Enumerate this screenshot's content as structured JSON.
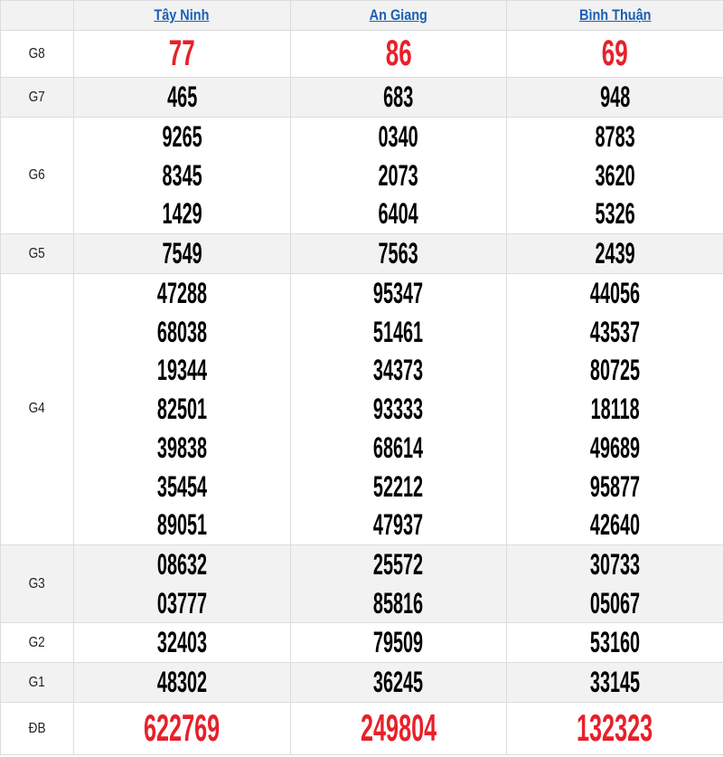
{
  "provinces": [
    "Tây Ninh",
    "An Giang",
    "Bình Thuận"
  ],
  "accent_red": "#e8202a",
  "link_blue": "#1a5fb4",
  "rows": [
    {
      "label": "G8",
      "values": [
        [
          "77"
        ],
        [
          "86"
        ],
        [
          "69"
        ]
      ]
    },
    {
      "label": "G7",
      "values": [
        [
          "465"
        ],
        [
          "683"
        ],
        [
          "948"
        ]
      ]
    },
    {
      "label": "G6",
      "values": [
        [
          "9265",
          "8345",
          "1429"
        ],
        [
          "0340",
          "2073",
          "6404"
        ],
        [
          "8783",
          "3620",
          "5326"
        ]
      ]
    },
    {
      "label": "G5",
      "values": [
        [
          "7549"
        ],
        [
          "7563"
        ],
        [
          "2439"
        ]
      ]
    },
    {
      "label": "G4",
      "values": [
        [
          "47288",
          "68038",
          "19344",
          "82501",
          "39838",
          "35454",
          "89051"
        ],
        [
          "95347",
          "51461",
          "34373",
          "93333",
          "68614",
          "52212",
          "47937"
        ],
        [
          "44056",
          "43537",
          "80725",
          "18118",
          "49689",
          "95877",
          "42640"
        ]
      ]
    },
    {
      "label": "G3",
      "values": [
        [
          "08632",
          "03777"
        ],
        [
          "25572",
          "85816"
        ],
        [
          "30733",
          "05067"
        ]
      ]
    },
    {
      "label": "G2",
      "values": [
        [
          "32403"
        ],
        [
          "79509"
        ],
        [
          "53160"
        ]
      ]
    },
    {
      "label": "G1",
      "values": [
        [
          "48302"
        ],
        [
          "36245"
        ],
        [
          "33145"
        ]
      ]
    },
    {
      "label": "ĐB",
      "values": [
        [
          "622769"
        ],
        [
          "249804"
        ],
        [
          "132323"
        ]
      ]
    }
  ]
}
